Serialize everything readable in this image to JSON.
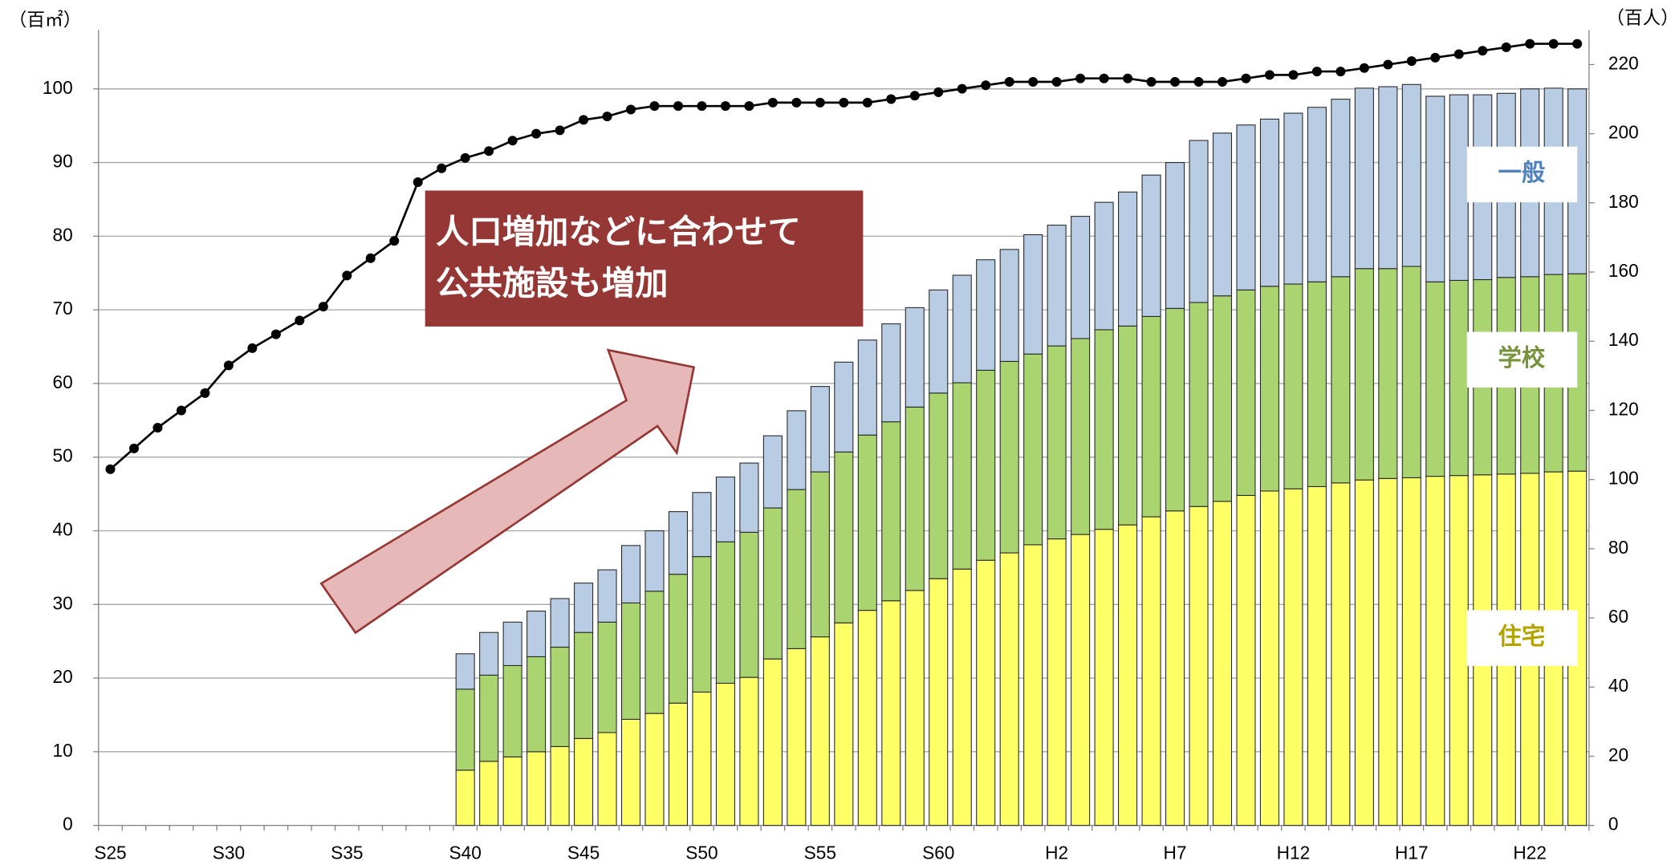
{
  "chart_data": {
    "type": "bar",
    "stacked": true,
    "y_unit_label": "（百㎡）",
    "y2_unit_label": "（百人）",
    "annotation": {
      "lines": [
        "人口増加などに合わせて",
        "公共施設も増加"
      ],
      "color": "#953735"
    },
    "categories": [
      "S25",
      null,
      null,
      null,
      null,
      "S30",
      null,
      null,
      null,
      null,
      "S35",
      null,
      null,
      null,
      null,
      "S40",
      null,
      null,
      null,
      null,
      "S45",
      null,
      null,
      null,
      null,
      "S50",
      null,
      null,
      null,
      null,
      "S55",
      null,
      null,
      null,
      null,
      "S60",
      null,
      null,
      null,
      null,
      "H2",
      null,
      null,
      null,
      null,
      "H7",
      null,
      null,
      null,
      null,
      "H12",
      null,
      null,
      null,
      null,
      "H17",
      null,
      null,
      null,
      null,
      "H22",
      null,
      null
    ],
    "ylim": [
      0,
      108
    ],
    "yticks": [
      0,
      10,
      20,
      30,
      40,
      50,
      60,
      70,
      80,
      90,
      100
    ],
    "y2lim": [
      0,
      230
    ],
    "y2ticks": [
      0,
      20,
      40,
      60,
      80,
      100,
      120,
      140,
      160,
      180,
      200,
      220
    ],
    "grid": true,
    "series": [
      {
        "name": "住宅",
        "color": "#ffff66",
        "label_color": "#b3a300",
        "values": [
          null,
          null,
          null,
          null,
          null,
          null,
          null,
          null,
          null,
          null,
          null,
          null,
          null,
          null,
          null,
          7.5,
          8.7,
          9.3,
          10.0,
          10.7,
          11.8,
          12.6,
          14.4,
          15.2,
          16.6,
          18.1,
          19.3,
          20.1,
          22.6,
          24.0,
          25.6,
          27.5,
          29.2,
          30.5,
          31.9,
          33.5,
          34.8,
          36.0,
          37.0,
          38.1,
          38.9,
          39.5,
          40.2,
          40.8,
          41.9,
          42.7,
          43.3,
          44.0,
          44.8,
          45.4,
          45.7,
          46.0,
          46.5,
          46.9,
          47.1,
          47.2,
          47.4,
          47.5,
          47.6,
          47.7,
          47.8,
          48.0,
          48.1
        ]
      },
      {
        "name": "学校",
        "color": "#a9d46f",
        "label_color": "#77933c",
        "values": [
          null,
          null,
          null,
          null,
          null,
          null,
          null,
          null,
          null,
          null,
          null,
          null,
          null,
          null,
          null,
          11.0,
          11.7,
          12.4,
          12.9,
          13.5,
          14.4,
          15.0,
          15.8,
          16.6,
          17.5,
          18.4,
          19.2,
          19.7,
          20.5,
          21.6,
          22.4,
          23.2,
          23.8,
          24.3,
          24.9,
          25.2,
          25.3,
          25.8,
          26.0,
          25.9,
          26.2,
          26.6,
          27.1,
          27.0,
          27.2,
          27.5,
          27.7,
          27.9,
          27.9,
          27.8,
          27.8,
          27.8,
          28.0,
          28.7,
          28.5,
          28.7,
          26.4,
          26.5,
          26.5,
          26.7,
          26.7,
          26.8,
          26.8
        ]
      },
      {
        "name": "一般",
        "color": "#b8cce4",
        "label_color": "#4f81bd",
        "values": [
          null,
          null,
          null,
          null,
          null,
          null,
          null,
          null,
          null,
          null,
          null,
          null,
          null,
          null,
          null,
          4.8,
          5.8,
          5.9,
          6.2,
          6.6,
          6.7,
          7.1,
          7.8,
          8.2,
          8.5,
          8.7,
          8.8,
          9.4,
          9.8,
          10.7,
          11.6,
          12.2,
          12.9,
          13.3,
          13.5,
          14.0,
          14.6,
          15.0,
          15.2,
          16.2,
          16.4,
          16.6,
          17.3,
          18.2,
          19.2,
          19.8,
          22.0,
          22.1,
          22.4,
          22.7,
          23.2,
          23.7,
          24.1,
          24.5,
          24.7,
          24.7,
          25.2,
          25.2,
          25.1,
          25.0,
          25.5,
          25.3,
          25.1
        ]
      },
      {
        "type": "line",
        "axis": "y2",
        "color": "#000000",
        "values": [
          103,
          109,
          115,
          120,
          125,
          133,
          138,
          142,
          146,
          150,
          159,
          164,
          169,
          186,
          190,
          193,
          195,
          198,
          200,
          201,
          204,
          205,
          207,
          208,
          208,
          208,
          208,
          208,
          209,
          209,
          209,
          209,
          209,
          210,
          211,
          212,
          213,
          214,
          215,
          215,
          215,
          216,
          216,
          216,
          215,
          215,
          215,
          215,
          216,
          217,
          217,
          218,
          218,
          219,
          220,
          221,
          222,
          223,
          224,
          225,
          226,
          226,
          226
        ]
      }
    ]
  }
}
